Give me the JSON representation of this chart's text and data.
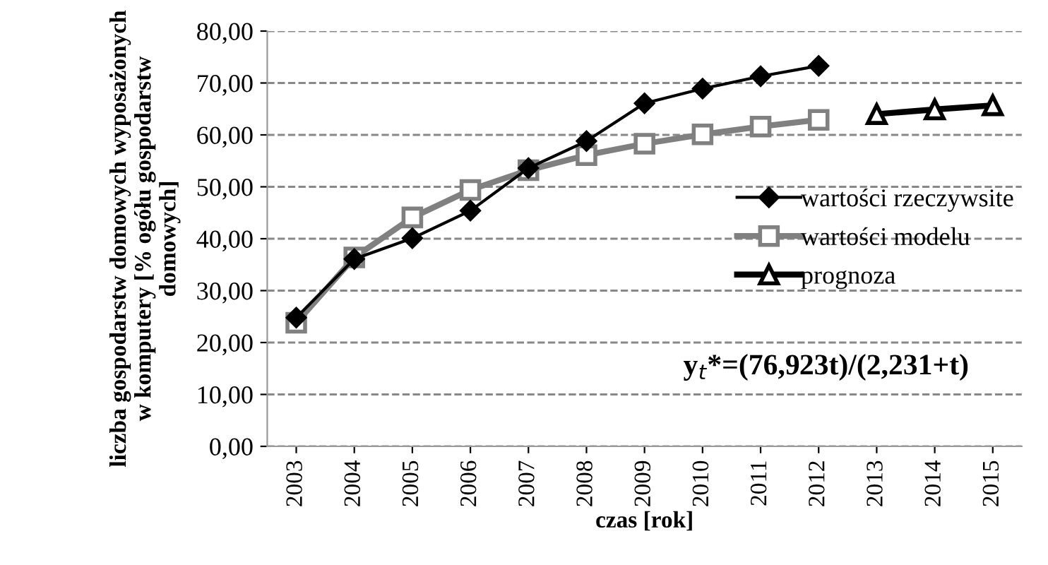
{
  "chart_data": {
    "type": "line",
    "xlabel": "czas [rok]",
    "ylabel": "liczba gospodarstw domowych wyposażonych w komputery [% ogółu gospodarstw domowych]",
    "categories": [
      "2003",
      "2004",
      "2005",
      "2006",
      "2007",
      "2008",
      "2009",
      "2010",
      "2011",
      "2012",
      "2013",
      "2014",
      "2015"
    ],
    "series": [
      {
        "name": "wartości rzeczywsite",
        "color": "#000000",
        "marker": "diamond",
        "values": [
          24.8,
          36.1,
          40.1,
          45.4,
          53.6,
          58.8,
          66.1,
          68.9,
          71.3,
          73.3,
          null,
          null,
          null
        ]
      },
      {
        "name": "wartości modelu",
        "color": "#808080",
        "marker": "square",
        "values": [
          23.8,
          36.4,
          44.1,
          49.4,
          53.2,
          56.1,
          58.3,
          60.1,
          61.6,
          62.9,
          null,
          null,
          null
        ]
      },
      {
        "name": "prognoza",
        "color": "#000000",
        "marker": "triangle",
        "values": [
          null,
          null,
          null,
          null,
          null,
          null,
          null,
          null,
          null,
          null,
          64.0,
          64.9,
          65.7
        ]
      }
    ],
    "ylim": [
      0,
      80
    ],
    "yticks": [
      {
        "value": 0,
        "label": "0,00"
      },
      {
        "value": 10,
        "label": "10,00"
      },
      {
        "value": 20,
        "label": "20,00"
      },
      {
        "value": 30,
        "label": "30,00"
      },
      {
        "value": 40,
        "label": "40,00"
      },
      {
        "value": 50,
        "label": "50,00"
      },
      {
        "value": 60,
        "label": "60,00"
      },
      {
        "value": 70,
        "label": "70,00"
      },
      {
        "value": 80,
        "label": "80,00"
      }
    ],
    "grid": "y",
    "line_style": "solid",
    "legend": "right",
    "annotations": [
      "y$_{t}$*=(76,923t)/(2,231+t)"
    ]
  }
}
